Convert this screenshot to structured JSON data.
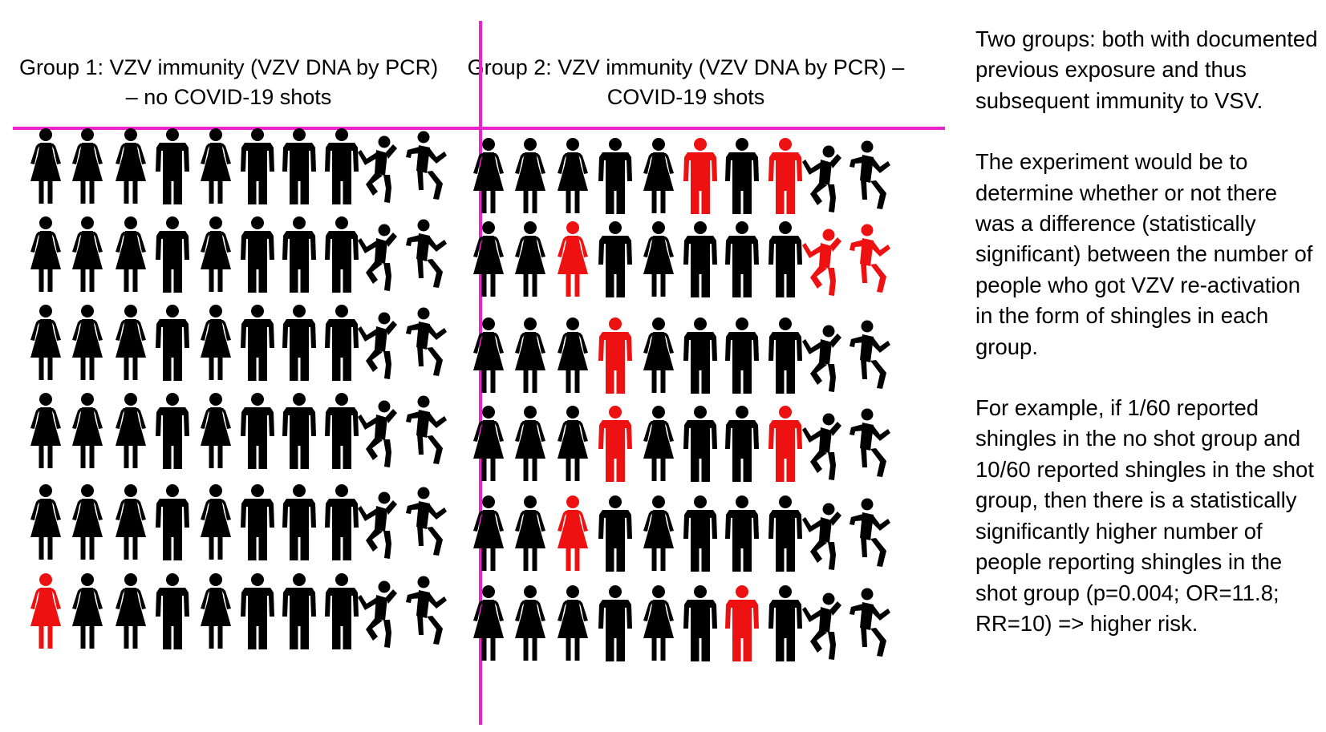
{
  "group1": {
    "title": "Group 1: VZV immunity (VZV DNA by PCR) – no COVID-19 shots",
    "rows": [
      "FFFFFFFFDD",
      "FFFFFFFFDD",
      "FFFFFFFFDD",
      "FFFFFFFFDD",
      "FFFFFFFFDD",
      "RFFFFFFFDD"
    ],
    "types": [
      "woman",
      "woman",
      "woman",
      "man",
      "woman",
      "man",
      "man",
      "man",
      "dancer-a",
      "dancer-b"
    ]
  },
  "group2": {
    "title": "Group 2: VZV immunity (VZV DNA by PCR) – COVID-19 shots",
    "rows": [
      "FFFFFRFRFF",
      "FFRFFFFFRR",
      "FFFRFFFFFF",
      "FFFRFFFRFF",
      "FFRFFFFFFF",
      "FFFFFFRFFF"
    ],
    "types": [
      "woman",
      "woman",
      "woman",
      "man",
      "woman",
      "man",
      "man",
      "man",
      "dancer-a",
      "dancer-b"
    ]
  },
  "colors": {
    "divider": "#ee22cc",
    "unaffected": "#000000",
    "shingles": "#ee1111"
  },
  "notes": [
    "Two groups: both with documented previous exposure and thus subsequent immunity to VSV.",
    "The experiment would be to determine whether or not there was a difference (statistically significant) between the number of people who got VZV re-activation in the form of shingles in each group.",
    "For example, if 1/60 reported shingles in the no shot group and 10/60 reported shingles in the shot group, then there is a statistically significantly higher number of people reporting shingles in the shot group (p=0.004; OR=11.8; RR=10) => higher risk."
  ]
}
